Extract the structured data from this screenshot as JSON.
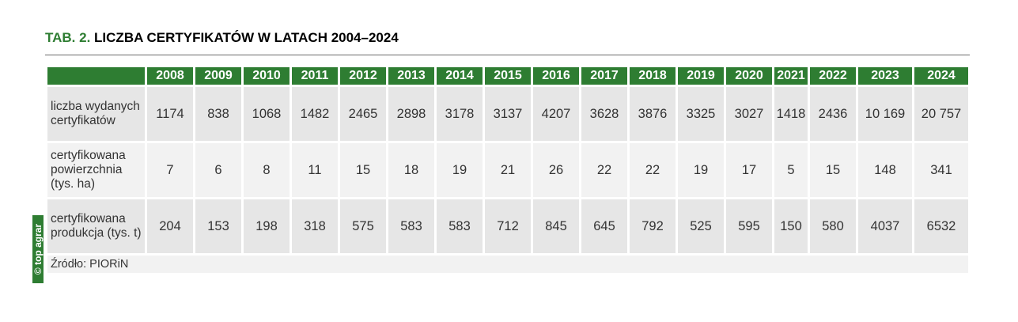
{
  "title": {
    "label": "TAB. 2.",
    "text": "LICZBA CERTYFIKATÓW W LATACH 2004–2024"
  },
  "table": {
    "header": [
      "2008",
      "2009",
      "2010",
      "2011",
      "2012",
      "2013",
      "2014",
      "2015",
      "2016",
      "2017",
      "2018",
      "2019",
      "2020",
      "2021",
      "2022",
      "2023",
      "2024"
    ],
    "rows": [
      {
        "label": "liczba wydanych certyfikatów",
        "values": [
          "1174",
          "838",
          "1068",
          "1482",
          "2465",
          "2898",
          "3178",
          "3137",
          "4207",
          "3628",
          "3876",
          "3325",
          "3027",
          "1418",
          "2436",
          "10 169",
          "20 757"
        ]
      },
      {
        "label": "certyfikowana powierzchnia (tys. ha)",
        "values": [
          "7",
          "6",
          "8",
          "11",
          "15",
          "18",
          "19",
          "21",
          "26",
          "22",
          "22",
          "19",
          "17",
          "5",
          "15",
          "148",
          "341"
        ]
      },
      {
        "label": "certyfikowana produkcja (tys. t)",
        "values": [
          "204",
          "153",
          "198",
          "318",
          "575",
          "583",
          "583",
          "712",
          "845",
          "645",
          "792",
          "525",
          "595",
          "150",
          "580",
          "4037",
          "6532"
        ]
      }
    ],
    "source": "Źródło: PIORiN"
  },
  "watermark": "© top agrar"
}
